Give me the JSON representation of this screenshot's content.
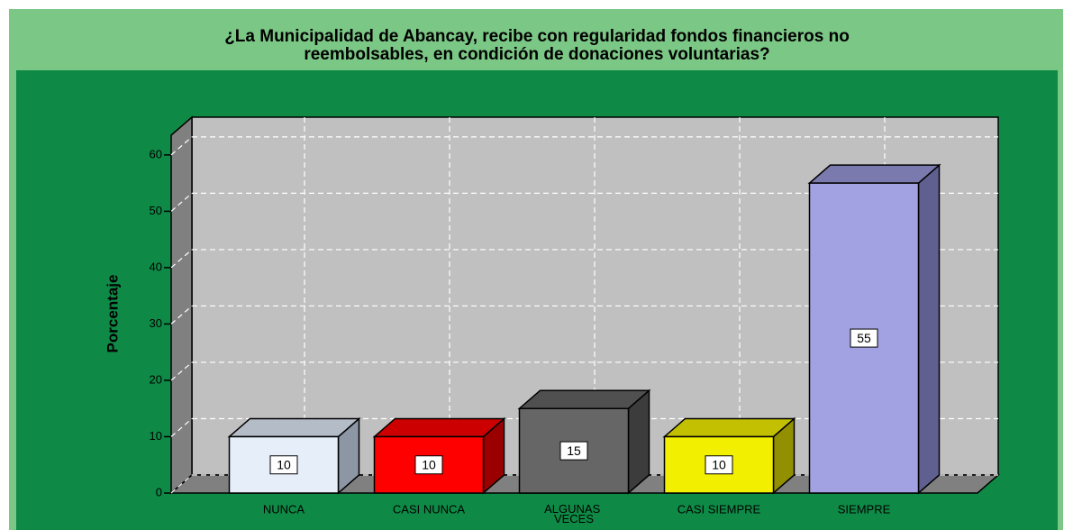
{
  "chart_data": {
    "type": "bar3d",
    "title": [
      "¿La Municipalidad de Abancay, recibe con regularidad fondos financieros no",
      "reembolsables, en condición de donaciones voluntarias?"
    ],
    "y_label": "Porcentaje",
    "categories": [
      "NUNCA",
      "CASI NUNCA",
      "ALGUNAS VECES",
      "CASI SIEMPRE",
      "SIEMPRE"
    ],
    "values": [
      10,
      10,
      15,
      10,
      55
    ],
    "colors": [
      "#e6eefa",
      "#ff0000",
      "#666666",
      "#f2ef00",
      "#a2a2e2"
    ],
    "side_colors": [
      "#8c96a4",
      "#9a0000",
      "#3c3c3c",
      "#929000",
      "#606090"
    ],
    "top_colors": [
      "#b4bcc8",
      "#cc0000",
      "#505050",
      "#c2c000",
      "#7a7aae"
    ],
    "ylim": [
      0,
      63.5
    ],
    "yticks": [
      0,
      10,
      20,
      30,
      40,
      50,
      60
    ],
    "grid": true
  }
}
